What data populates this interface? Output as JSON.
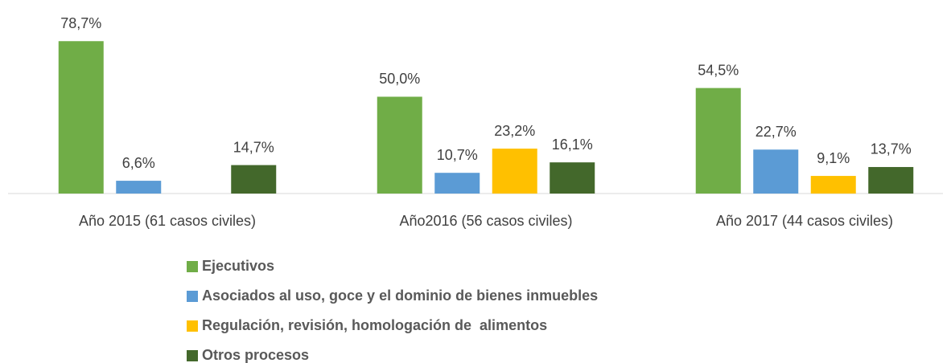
{
  "chart_data": {
    "type": "bar",
    "categories": [
      "Año 2015 (61 casos civiles)",
      "Año2016 (56 casos civiles)",
      "Año 2017 (44 casos civiles)"
    ],
    "series": [
      {
        "name": "Ejecutivos",
        "color": "#70ad47",
        "values": [
          78.7,
          50.0,
          54.5
        ],
        "value_labels": [
          "78,7%",
          "50,0%",
          "54,5%"
        ]
      },
      {
        "name": "Asociados al uso, goce y el dominio de bienes inmuebles",
        "color": "#5b9bd5",
        "values": [
          6.6,
          10.7,
          22.7
        ],
        "value_labels": [
          "6,6%",
          "10,7%",
          "22,7%"
        ]
      },
      {
        "name": "Regulación, revisión, homologación de  alimentos",
        "color": "#ffc000",
        "values": [
          null,
          23.2,
          9.1
        ],
        "value_labels": [
          null,
          "23,2%",
          "9,1%"
        ]
      },
      {
        "name": "Otros procesos",
        "color": "#43682b",
        "values": [
          14.7,
          16.1,
          13.7
        ],
        "value_labels": [
          "14,7%",
          "16,1%",
          "13,7%"
        ]
      }
    ],
    "ylim": [
      0,
      90
    ]
  }
}
